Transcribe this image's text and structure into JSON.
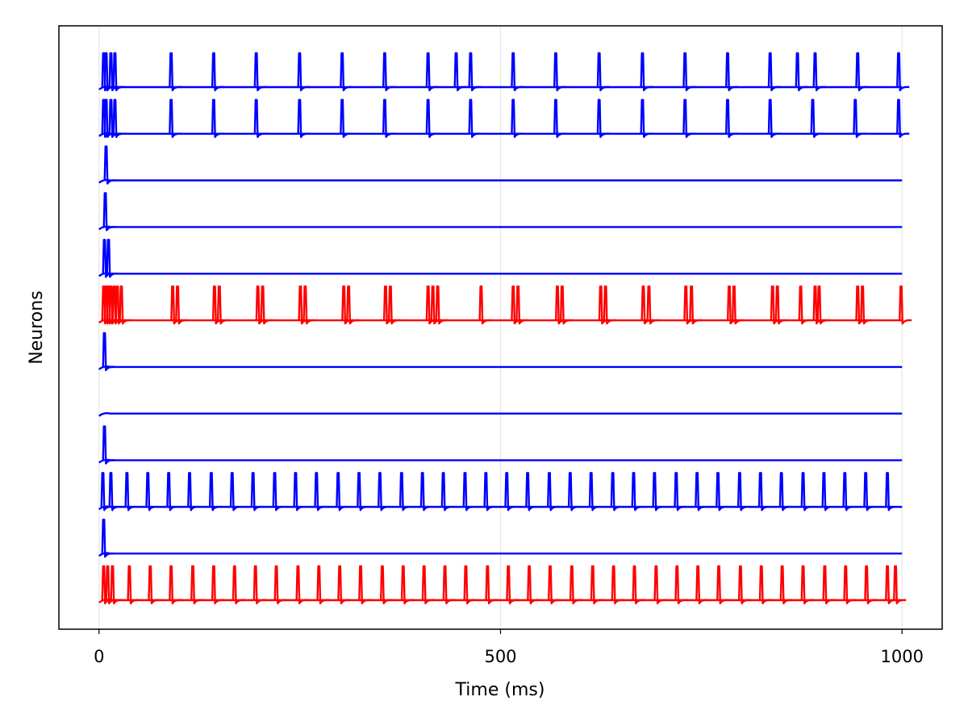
{
  "chart_data": {
    "type": "spike_trace",
    "x_label": "Time (ms)",
    "y_label": "Neurons",
    "xlim": [
      -50,
      1050
    ],
    "xticks": [
      0,
      500,
      1000
    ],
    "grid": true,
    "series": [
      {
        "color": "#0000ff",
        "spikes": [
          5,
          8,
          14,
          19,
          89,
          142,
          195,
          249,
          302,
          355,
          409,
          444,
          462,
          515,
          568,
          622,
          676,
          729,
          782,
          835,
          869,
          891,
          944,
          995
        ]
      },
      {
        "color": "#0000ff",
        "spikes": [
          5,
          8,
          14,
          19,
          89,
          142,
          195,
          249,
          302,
          355,
          409,
          462,
          515,
          568,
          622,
          676,
          729,
          782,
          835,
          888,
          941,
          995
        ]
      },
      {
        "color": "#0000ff",
        "spikes": [
          8
        ]
      },
      {
        "color": "#0000ff",
        "spikes": [
          7
        ]
      },
      {
        "color": "#0000ff",
        "spikes": [
          6,
          11
        ]
      },
      {
        "color": "#ff0000",
        "spikes": [
          5,
          8,
          11,
          14,
          18,
          22,
          27,
          91,
          97,
          143,
          149,
          197,
          203,
          250,
          256,
          304,
          310,
          356,
          362,
          409,
          415,
          421,
          475,
          515,
          521,
          570,
          576,
          624,
          630,
          677,
          684,
          730,
          737,
          784,
          790,
          838,
          844,
          873,
          891,
          896,
          944,
          950,
          998
        ]
      },
      {
        "color": "#0000ff",
        "spikes": [
          6
        ]
      },
      {
        "color": "#0000ff",
        "spikes": []
      },
      {
        "color": "#0000ff",
        "spikes": [
          6
        ]
      },
      {
        "color": "#0000ff",
        "spikes": [
          4,
          14,
          34,
          60,
          86,
          112,
          139,
          165,
          191,
          218,
          244,
          270,
          297,
          323,
          349,
          376,
          402,
          428,
          455,
          481,
          507,
          533,
          560,
          586,
          612,
          639,
          665,
          691,
          718,
          744,
          770,
          797,
          823,
          849,
          876,
          902,
          928,
          954,
          981
        ]
      },
      {
        "color": "#0000ff",
        "spikes": [
          5
        ]
      },
      {
        "color": "#ff0000",
        "spikes": [
          5,
          10,
          16,
          37,
          63,
          89,
          116,
          142,
          168,
          194,
          220,
          247,
          273,
          299,
          325,
          352,
          378,
          404,
          430,
          456,
          483,
          509,
          535,
          561,
          588,
          614,
          640,
          666,
          693,
          719,
          745,
          771,
          798,
          824,
          850,
          876,
          903,
          929,
          955,
          981,
          991
        ]
      }
    ]
  }
}
